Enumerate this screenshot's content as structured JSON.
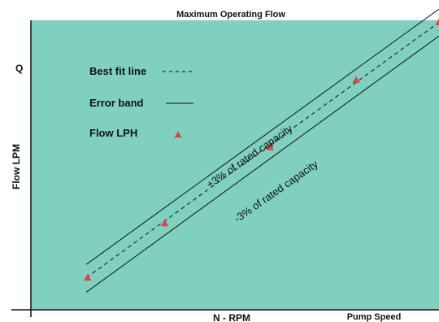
{
  "chart_data": {
    "type": "scatter",
    "title": "Maximum Operating Flow",
    "xlabel": "N - RPM",
    "ylabel": "Flow LPM",
    "x_axis_note": "Pump Speed",
    "y_tick_label": "Q",
    "grid": false,
    "background_color": "#7fd0bf",
    "marker_color": "#e8413c",
    "legend": [
      {
        "label": "Best fit line",
        "style": "dashed"
      },
      {
        "label": "Error band",
        "style": "solid"
      },
      {
        "label": "Flow LPH",
        "style": "marker"
      }
    ],
    "annotations": [
      "+3% of rated capacity",
      "-3% of rated capacity"
    ],
    "xlim": [
      0,
      100
    ],
    "ylim": [
      0,
      100
    ],
    "points": [
      {
        "x": 13.9,
        "y": 11.1
      },
      {
        "x": 32.8,
        "y": 29.8
      },
      {
        "x": 58.6,
        "y": 56.1
      },
      {
        "x": 79.7,
        "y": 79.4
      },
      {
        "x": 100,
        "y": 99.3
      }
    ],
    "fit_line": {
      "x": [
        13.6,
        100
      ],
      "y": [
        11.1,
        99.3
      ]
    },
    "upper_band": {
      "x": [
        13.6,
        100
      ],
      "y": [
        15.7,
        103.9
      ]
    },
    "lower_band": {
      "x": [
        13.6,
        100
      ],
      "y": [
        6.1,
        94.6
      ]
    }
  }
}
